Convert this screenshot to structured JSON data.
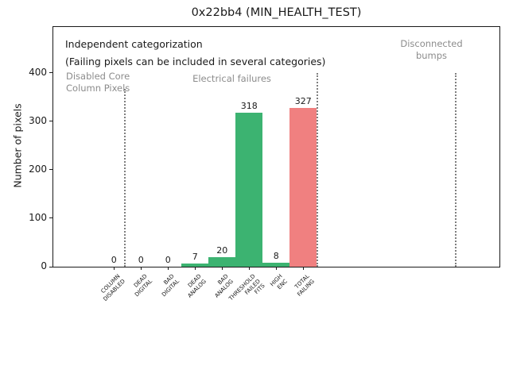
{
  "title": "0x22bb4 (MIN_HEALTH_TEST)",
  "chart_data": {
    "type": "bar",
    "title": "0x22bb4 (MIN_HEALTH_TEST)",
    "xlabel": "",
    "ylabel": "Number of pixels",
    "ylim": [
      0,
      490
    ],
    "yticks": [
      0,
      100,
      200,
      300,
      400
    ],
    "grid": false,
    "legend": "none",
    "categories": [
      "COLUMN DISABLED",
      "DEAD DIGITAL",
      "BAD DIGITAL",
      "DEAD ANALOG",
      "BAD ANALOG",
      "THRESHOLD FAILED FITS",
      "HIGH ENC",
      "TOTAL FAILING"
    ],
    "category_label_lines": [
      [
        "COLUMN",
        "DISABLED"
      ],
      [
        "DEAD",
        "DIGITAL"
      ],
      [
        "BAD",
        "DIGITAL"
      ],
      [
        "DEAD",
        "ANALOG"
      ],
      [
        "BAD",
        "ANALOG"
      ],
      [
        "THRESHOLD",
        "FAILED",
        "FITS"
      ],
      [
        "HIGH",
        "ENC"
      ],
      [
        "TOTAL",
        "FAILING"
      ]
    ],
    "values": [
      0,
      0,
      0,
      7,
      20,
      318,
      8,
      327
    ],
    "value_labels": [
      "0",
      "0",
      "0",
      "7",
      "20",
      "318",
      "8",
      "327"
    ],
    "bar_colors": [
      "#3cb371",
      "#3cb371",
      "#3cb371",
      "#3cb371",
      "#3cb371",
      "#3cb371",
      "#3cb371",
      "#f08080"
    ],
    "annotations": {
      "note_line1": "Independent categorization",
      "note_line2": "(Failing pixels can be included in several categories)",
      "sections": [
        {
          "name": "disabled-core-column-pixels",
          "label_lines": [
            "Disabled Core",
            "Column Pixels"
          ]
        },
        {
          "name": "electrical-failures",
          "label_lines": [
            "Electrical failures"
          ]
        },
        {
          "name": "disconnected-bumps",
          "label_lines": [
            "Disconnected",
            "bumps"
          ]
        }
      ]
    },
    "colors": {
      "bar_green": "#3cb371",
      "bar_red": "#f08080",
      "section_text": "#8c8c8c",
      "separator": "#7f7f7f",
      "spine": "#1a1a1a"
    }
  }
}
